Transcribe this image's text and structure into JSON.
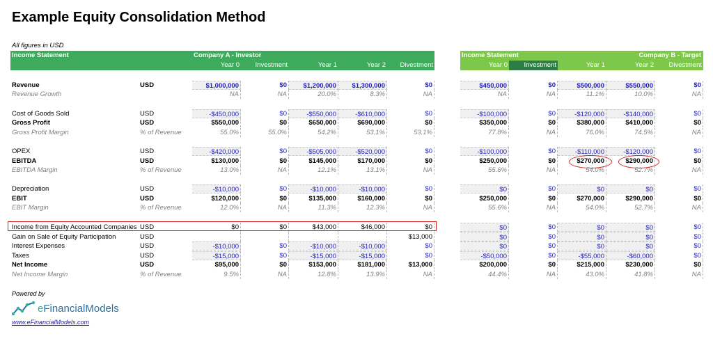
{
  "title": "Example Equity Consolidation Method",
  "subtitle": "All figures in USD",
  "companyA": {
    "header_left": "Income Statement",
    "header_right": "Company A - Investor",
    "columns": [
      "Year 0",
      "Investment",
      "Year 1",
      "Year 2",
      "Divestment"
    ]
  },
  "companyB": {
    "header_left": "Income Statement",
    "header_right": "Company B - Target",
    "columns": [
      "Year 0",
      "Investment",
      "Year 1",
      "Year 2",
      "Divestment"
    ]
  },
  "rows": [
    {
      "label": "Revenue",
      "unit": "USD",
      "style": "bold",
      "a": [
        "$1,000,000",
        "$0",
        "$1,200,000",
        "$1,300,000",
        "$0"
      ],
      "b": [
        "$450,000",
        "$0",
        "$500,000",
        "$550,000",
        "$0"
      ],
      "color": "blue"
    },
    {
      "label": "Revenue Growth",
      "unit": "",
      "style": "ital",
      "a": [
        "NA",
        "NA",
        "20.0%",
        "8.3%",
        "NA"
      ],
      "b": [
        "NA",
        "NA",
        "11.1%",
        "10.0%",
        "NA"
      ]
    },
    {
      "label": "Cost of Goods Sold",
      "unit": "USD",
      "style": "",
      "a": [
        "-$450,000",
        "$0",
        "-$550,000",
        "-$610,000",
        "$0"
      ],
      "b": [
        "-$100,000",
        "$0",
        "-$120,000",
        "-$140,000",
        "$0"
      ],
      "color": "blue"
    },
    {
      "label": "Gross Profit",
      "unit": "USD",
      "style": "bold",
      "a": [
        "$550,000",
        "$0",
        "$650,000",
        "$690,000",
        "$0"
      ],
      "b": [
        "$350,000",
        "$0",
        "$380,000",
        "$410,000",
        "$0"
      ]
    },
    {
      "label": "Gross Profit Margin",
      "unit": "% of Revenue",
      "style": "ital",
      "a": [
        "55.0%",
        "55.0%",
        "54.2%",
        "53.1%",
        "53.1%"
      ],
      "b": [
        "77.8%",
        "NA",
        "76.0%",
        "74.5%",
        "NA"
      ]
    },
    {
      "label": "OPEX",
      "unit": "USD",
      "style": "",
      "a": [
        "-$420,000",
        "$0",
        "-$505,000",
        "-$520,000",
        "$0"
      ],
      "b": [
        "-$100,000",
        "$0",
        "-$110,000",
        "-$120,000",
        "$0"
      ],
      "color": "blue"
    },
    {
      "label": "EBITDA",
      "unit": "USD",
      "style": "bold",
      "a": [
        "$130,000",
        "$0",
        "$145,000",
        "$170,000",
        "$0"
      ],
      "b": [
        "$250,000",
        "$0",
        "$270,000",
        "$290,000",
        "$0"
      ]
    },
    {
      "label": "EBITDA Margin",
      "unit": "% of Revenue",
      "style": "ital",
      "a": [
        "13.0%",
        "NA",
        "12.1%",
        "13.1%",
        "NA"
      ],
      "b": [
        "55.6%",
        "NA",
        "54.0%",
        "52.7%",
        "NA"
      ]
    },
    {
      "label": "Depreciation",
      "unit": "USD",
      "style": "",
      "a": [
        "-$10,000",
        "$0",
        "-$10,000",
        "-$10,000",
        "$0"
      ],
      "b": [
        "$0",
        "$0",
        "$0",
        "$0",
        "$0"
      ],
      "color": "blue"
    },
    {
      "label": "EBIT",
      "unit": "USD",
      "style": "bold",
      "a": [
        "$120,000",
        "$0",
        "$135,000",
        "$160,000",
        "$0"
      ],
      "b": [
        "$250,000",
        "$0",
        "$270,000",
        "$290,000",
        "$0"
      ]
    },
    {
      "label": "EBIT Margin",
      "unit": "% of Revenue",
      "style": "ital",
      "a": [
        "12.0%",
        "NA",
        "11.3%",
        "12.3%",
        "NA"
      ],
      "b": [
        "55.6%",
        "NA",
        "54.0%",
        "52.7%",
        "NA"
      ]
    },
    {
      "label": "Income from Equity Accounted Companies",
      "unit": "USD",
      "style": "",
      "a": [
        "$0",
        "$0",
        "$43,000",
        "$46,000",
        "$0"
      ],
      "b": [
        "$0",
        "$0",
        "$0",
        "$0",
        "$0"
      ],
      "color": "blueB"
    },
    {
      "label": "Gain on Sale of Equity Participation",
      "unit": "USD",
      "style": "",
      "a": [
        "",
        "",
        "",
        "",
        "$13,000"
      ],
      "b": [
        "$0",
        "$0",
        "$0",
        "$0",
        "$0"
      ],
      "color": "blueB"
    },
    {
      "label": "Interest Expenses",
      "unit": "USD",
      "style": "",
      "a": [
        "-$10,000",
        "$0",
        "-$10,000",
        "-$10,000",
        "$0"
      ],
      "b": [
        "$0",
        "$0",
        "$0",
        "$0",
        "$0"
      ],
      "color": "blue"
    },
    {
      "label": "Taxes",
      "unit": "USD",
      "style": "",
      "a": [
        "-$15,000",
        "$0",
        "-$15,000",
        "-$15,000",
        "$0"
      ],
      "b": [
        "-$50,000",
        "$0",
        "-$55,000",
        "-$60,000",
        "$0"
      ],
      "color": "blue"
    },
    {
      "label": "Net Income",
      "unit": "USD",
      "style": "bold",
      "a": [
        "$95,000",
        "$0",
        "$153,000",
        "$181,000",
        "$13,000"
      ],
      "b": [
        "$200,000",
        "$0",
        "$215,000",
        "$230,000",
        "$0"
      ]
    },
    {
      "label": "Net Income Margin",
      "unit": "% of Revenue",
      "style": "ital",
      "a": [
        "9.5%",
        "NA",
        "12.8%",
        "13.9%",
        "NA"
      ],
      "b": [
        "44.4%",
        "NA",
        "43.0%",
        "41.8%",
        "NA"
      ]
    }
  ],
  "footer": {
    "powered": "Powered by",
    "logo_e": "e",
    "logo_rest": "FinancialModels",
    "link": "www.eFinancialModels.com"
  },
  "colors": {
    "header_a": "#3daa5c",
    "header_b": "#7dc84a",
    "input_blue": "#1f1fbf",
    "highlight": "#d02020"
  }
}
